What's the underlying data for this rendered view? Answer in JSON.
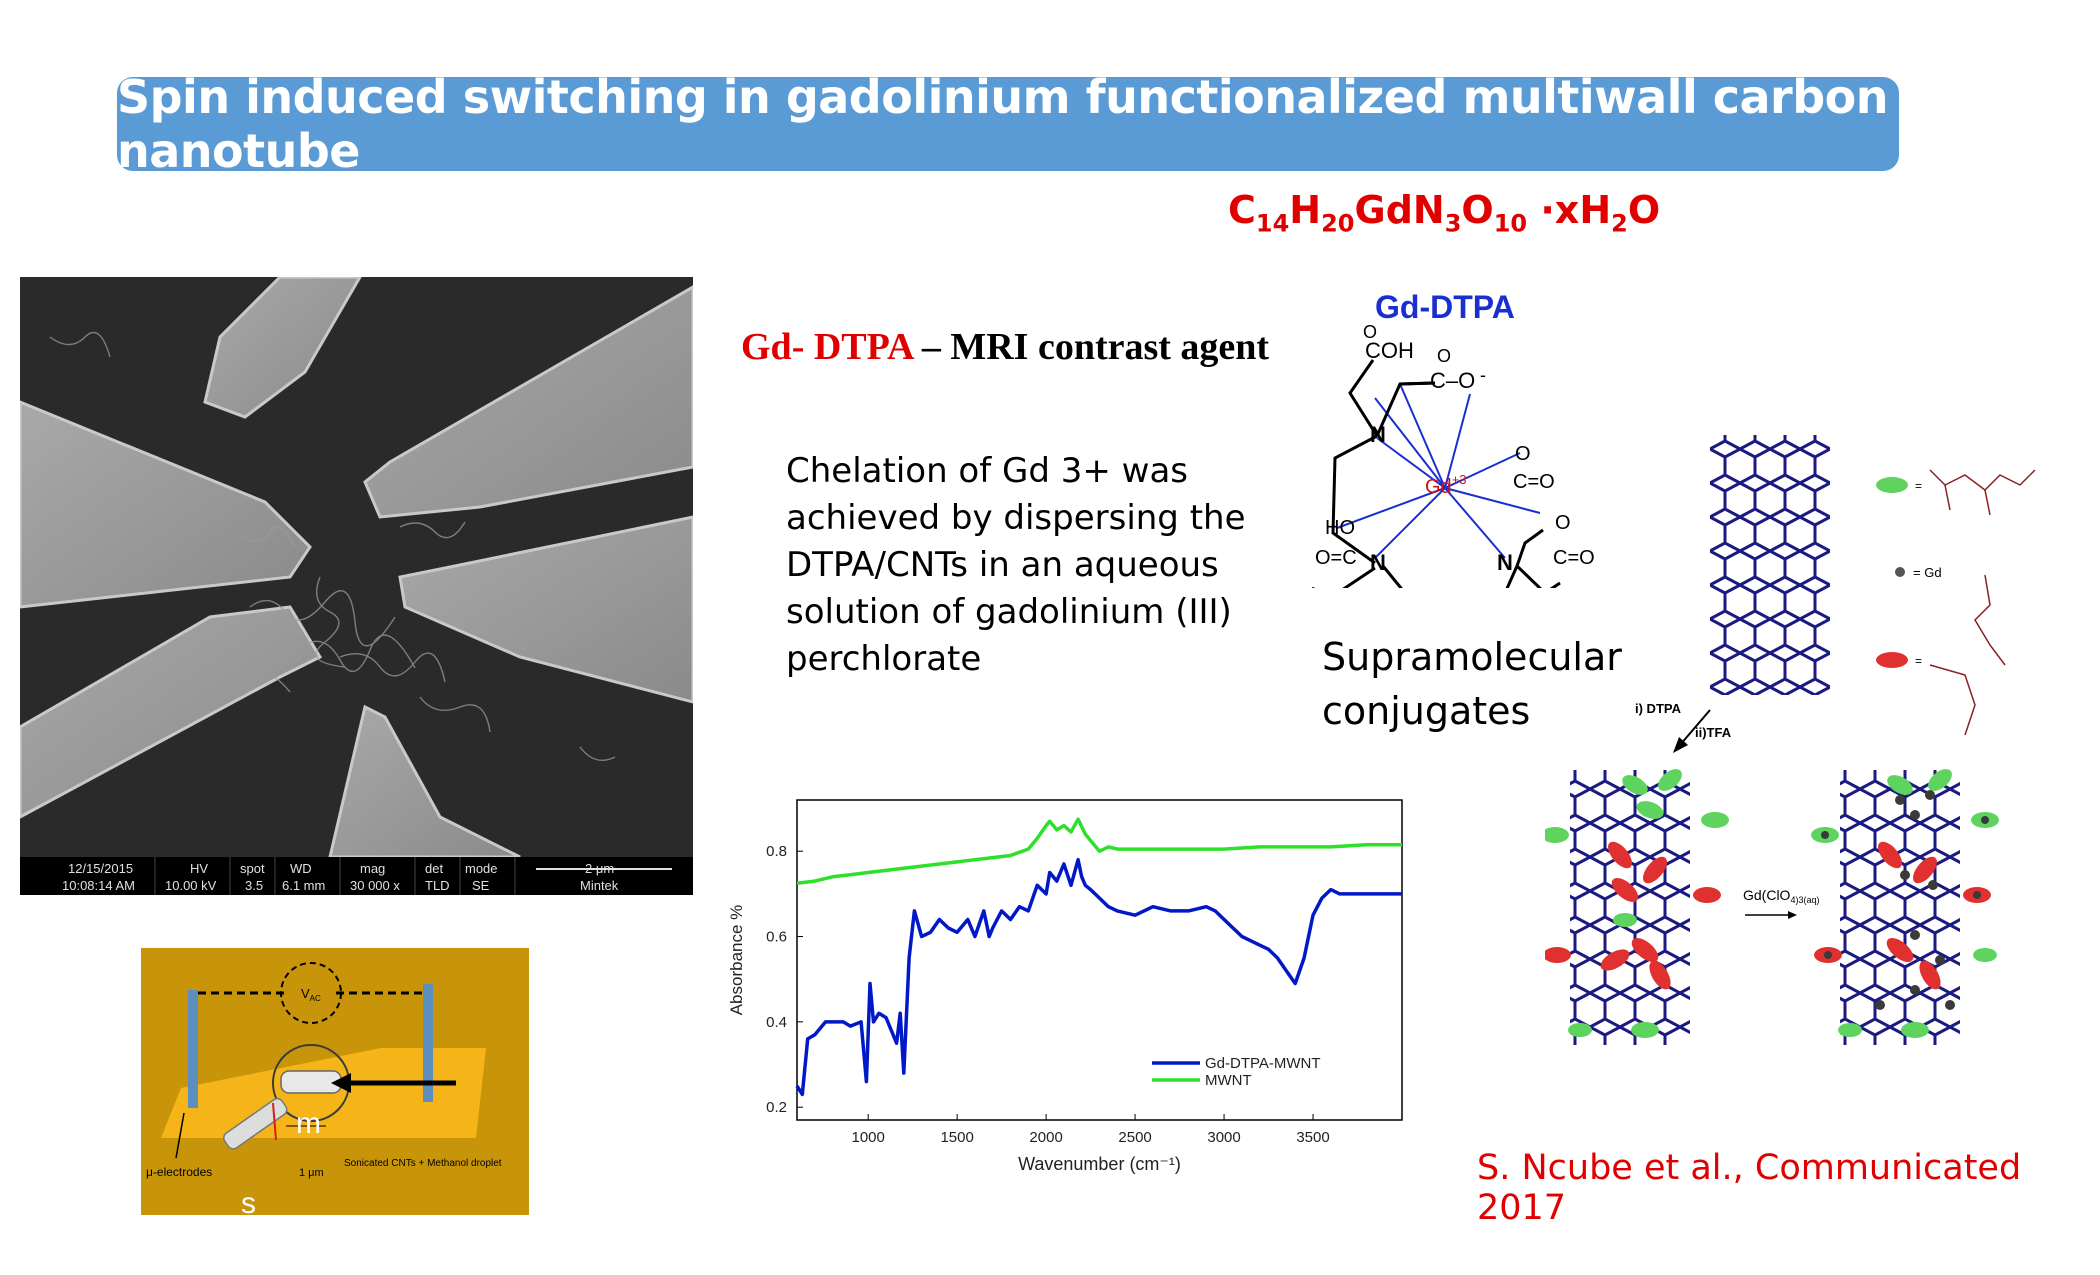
{
  "title": "Spin induced switching in gadolinium functionalized multiwall carbon nanotube",
  "formula": {
    "c": "C",
    "c_n": "14",
    "h": "H",
    "h_n": "20",
    "gdn": "GdN",
    "n_n": "3",
    "o": "O",
    "o_n": "10",
    "water": " ·xH",
    "water_n": "2",
    "water_o": "O"
  },
  "heading": {
    "red": "Gd- DTPA",
    "rest": " – MRI contrast agent"
  },
  "chelation_text": "Chelation of Gd 3+ was achieved by dispersing the DTPA/CNTs in an aqueous solution of gadolinium (III) perchlorate",
  "supramolecular": {
    "line1": "Supramolecular",
    "line2": "conjugates"
  },
  "citation": "S. Ncube et al., Communicated 2017",
  "molecule": {
    "title": "Gd-DTPA",
    "center": "Gd",
    "charge": "+3",
    "labels": {
      "cooh_top": "COH",
      "o_top1": "O",
      "c_o_minus": "C–O",
      "o_top2": "O",
      "minus": "-",
      "n_top": "N",
      "n_left": "N",
      "n_right": "N",
      "o_minus_right": "O",
      "c_eq_o_right": "C=O",
      "ho": "HO",
      "o_eq_c": "O=C",
      "o_minus_br": "O",
      "c_eq_o_br": "C=O"
    }
  },
  "sem_image": {
    "status_headers": [
      "12/15/2015",
      "HV",
      "spot",
      "WD",
      "mag",
      "det",
      "mode",
      "2 μm"
    ],
    "status_values": [
      "10:08:14 AM",
      "10.00 kV",
      "3.5",
      "6.1 mm",
      "30 000 x",
      "TLD",
      "SE",
      "Mintek"
    ]
  },
  "device": {
    "vac": "V",
    "vac_sub": "AC",
    "electrodes_label": "μ-electrodes",
    "droplet_label": "Sonicated CNTs + Methanol droplet",
    "scale": "1 μm",
    "m": "m",
    "s": "s"
  },
  "scheme": {
    "gd_legend": "= Gd",
    "step1a": "i) DTPA",
    "step1b": "ii)TFA",
    "step2": "Gd(ClO",
    "step2_sub": "4",
    "step2_tail": ")3(aq)",
    "eq": "="
  },
  "chart_data": {
    "type": "line",
    "title": "",
    "xlabel": "Wavenumber (cm⁻¹)",
    "ylabel": "Absorbance %",
    "xlim": [
      600,
      4000
    ],
    "ylim": [
      0.17,
      0.92
    ],
    "xticks": [
      1000,
      1500,
      2000,
      2500,
      3000,
      3500
    ],
    "yticks": [
      0.2,
      0.4,
      0.6,
      0.8
    ],
    "ytick_labels": [
      "0.2",
      "0.4",
      "0.6",
      "0.8"
    ],
    "legend_position": "bottom-right",
    "series": [
      {
        "name": "Gd-DTPA-MWNT",
        "color": "#0018c8",
        "x": [
          600,
          630,
          660,
          700,
          760,
          820,
          860,
          900,
          960,
          990,
          1010,
          1030,
          1060,
          1100,
          1160,
          1180,
          1200,
          1230,
          1260,
          1300,
          1350,
          1400,
          1450,
          1500,
          1560,
          1600,
          1650,
          1680,
          1700,
          1750,
          1800,
          1850,
          1900,
          1950,
          2000,
          2020,
          2060,
          2100,
          2140,
          2180,
          2200,
          2220,
          2250,
          2300,
          2350,
          2400,
          2500,
          2600,
          2700,
          2800,
          2900,
          2950,
          3000,
          3050,
          3100,
          3150,
          3200,
          3250,
          3300,
          3350,
          3400,
          3450,
          3500,
          3550,
          3600,
          3650,
          3700,
          3800,
          3900,
          4000
        ],
        "y": [
          0.25,
          0.23,
          0.36,
          0.37,
          0.4,
          0.4,
          0.4,
          0.39,
          0.4,
          0.26,
          0.49,
          0.4,
          0.42,
          0.41,
          0.35,
          0.42,
          0.28,
          0.55,
          0.66,
          0.6,
          0.61,
          0.64,
          0.62,
          0.61,
          0.64,
          0.6,
          0.66,
          0.6,
          0.62,
          0.66,
          0.64,
          0.67,
          0.66,
          0.72,
          0.7,
          0.75,
          0.73,
          0.77,
          0.72,
          0.78,
          0.74,
          0.72,
          0.71,
          0.69,
          0.67,
          0.66,
          0.65,
          0.67,
          0.66,
          0.66,
          0.67,
          0.66,
          0.64,
          0.62,
          0.6,
          0.59,
          0.58,
          0.57,
          0.55,
          0.52,
          0.49,
          0.55,
          0.65,
          0.69,
          0.71,
          0.7,
          0.7,
          0.7,
          0.7,
          0.7
        ]
      },
      {
        "name": "MWNT",
        "color": "#2ee02a",
        "x": [
          600,
          700,
          800,
          900,
          1000,
          1100,
          1200,
          1300,
          1400,
          1500,
          1600,
          1700,
          1800,
          1900,
          1950,
          2000,
          2020,
          2060,
          2100,
          2140,
          2180,
          2220,
          2260,
          2300,
          2350,
          2400,
          2500,
          2600,
          2800,
          3000,
          3200,
          3400,
          3600,
          3800,
          4000
        ],
        "y": [
          0.725,
          0.73,
          0.74,
          0.745,
          0.75,
          0.755,
          0.76,
          0.765,
          0.77,
          0.775,
          0.78,
          0.785,
          0.79,
          0.805,
          0.83,
          0.86,
          0.87,
          0.85,
          0.86,
          0.845,
          0.875,
          0.84,
          0.82,
          0.8,
          0.81,
          0.805,
          0.805,
          0.805,
          0.805,
          0.805,
          0.81,
          0.81,
          0.81,
          0.815,
          0.815
        ]
      }
    ]
  }
}
